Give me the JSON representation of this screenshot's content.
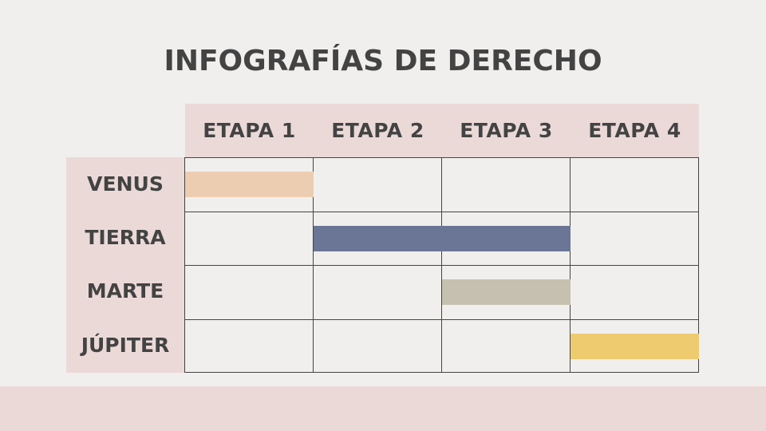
{
  "title": "INFOGRAFÍAS DE DERECHO",
  "columns": [
    "ETAPA 1",
    "ETAPA 2",
    "ETAPA 3",
    "ETAPA 4"
  ],
  "rows": [
    {
      "label": "VENUS",
      "start_stage": 1,
      "end_stage": 1,
      "color": "#edcdb1"
    },
    {
      "label": "TIERRA",
      "start_stage": 2,
      "end_stage": 3,
      "color": "#6b7696"
    },
    {
      "label": "MARTE",
      "start_stage": 3,
      "end_stage": 3,
      "color": "#c6c0b0"
    },
    {
      "label": "JÚPITER",
      "start_stage": 4,
      "end_stage": 4,
      "color": "#efcb70"
    }
  ],
  "colors": {
    "background": "#f0efed",
    "accent_band": "#ebd9d8",
    "text": "#434343"
  }
}
